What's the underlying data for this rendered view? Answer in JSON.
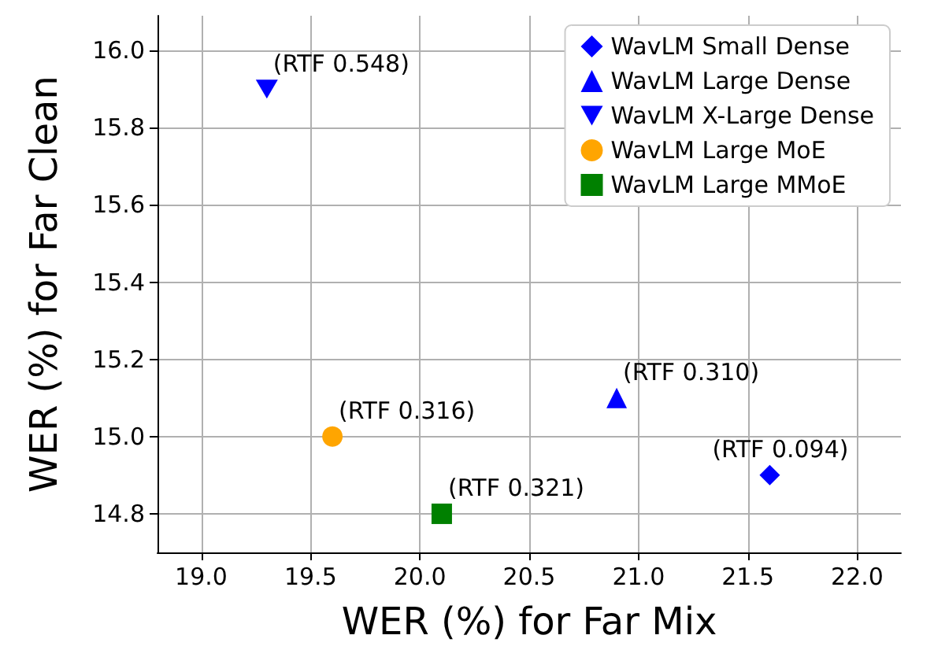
{
  "chart_data": {
    "type": "scatter",
    "xlabel": "WER (%) for Far Mix",
    "ylabel": "WER (%) for Far Clean",
    "series": [
      {
        "name": "WavLM Small Dense",
        "color": "#0000ff",
        "marker": "diamond",
        "x": [
          21.6
        ],
        "values": [
          14.9
        ]
      },
      {
        "name": "WavLM Large Dense",
        "color": "#0000ff",
        "marker": "triangle",
        "x": [
          20.9
        ],
        "values": [
          15.1
        ]
      },
      {
        "name": "WavLM X-Large Dense",
        "color": "#0000ff",
        "marker": "triangle-down",
        "x": [
          19.3
        ],
        "values": [
          15.9
        ]
      },
      {
        "name": "WavLM Large MoE",
        "color": "#ffa500",
        "marker": "circle",
        "x": [
          19.6
        ],
        "values": [
          15.0
        ]
      },
      {
        "name": "WavLM Large MMoE",
        "color": "#008000",
        "marker": "square",
        "x": [
          20.1
        ],
        "values": [
          14.8
        ]
      }
    ],
    "annotations": [
      {
        "text": "(RTF 0.094)",
        "x": 21.6,
        "y": 14.9
      },
      {
        "text": "(RTF 0.310)",
        "x": 20.9,
        "y": 15.1
      },
      {
        "text": "(RTF 0.548)",
        "x": 19.3,
        "y": 15.9
      },
      {
        "text": "(RTF 0.316)",
        "x": 19.6,
        "y": 15.0
      },
      {
        "text": "(RTF 0.321)",
        "x": 20.1,
        "y": 14.8
      }
    ],
    "xlim": [
      18.8,
      22.2
    ],
    "xticks": [
      {
        "value": 19,
        "label": "19.0"
      },
      19.5,
      {
        "value": 20,
        "label": "20.0"
      },
      20.5,
      {
        "value": 21,
        "label": "21.0"
      },
      21.5,
      {
        "value": 22,
        "label": "22.0"
      }
    ],
    "ylim": [
      14.7,
      16.09
    ],
    "yticks": [
      14.8,
      {
        "value": 15,
        "label": "15.0"
      },
      15.2,
      15.4,
      15.6,
      15.8,
      {
        "value": 16,
        "label": "16.0"
      }
    ],
    "grid": true,
    "legend": "top right"
  }
}
